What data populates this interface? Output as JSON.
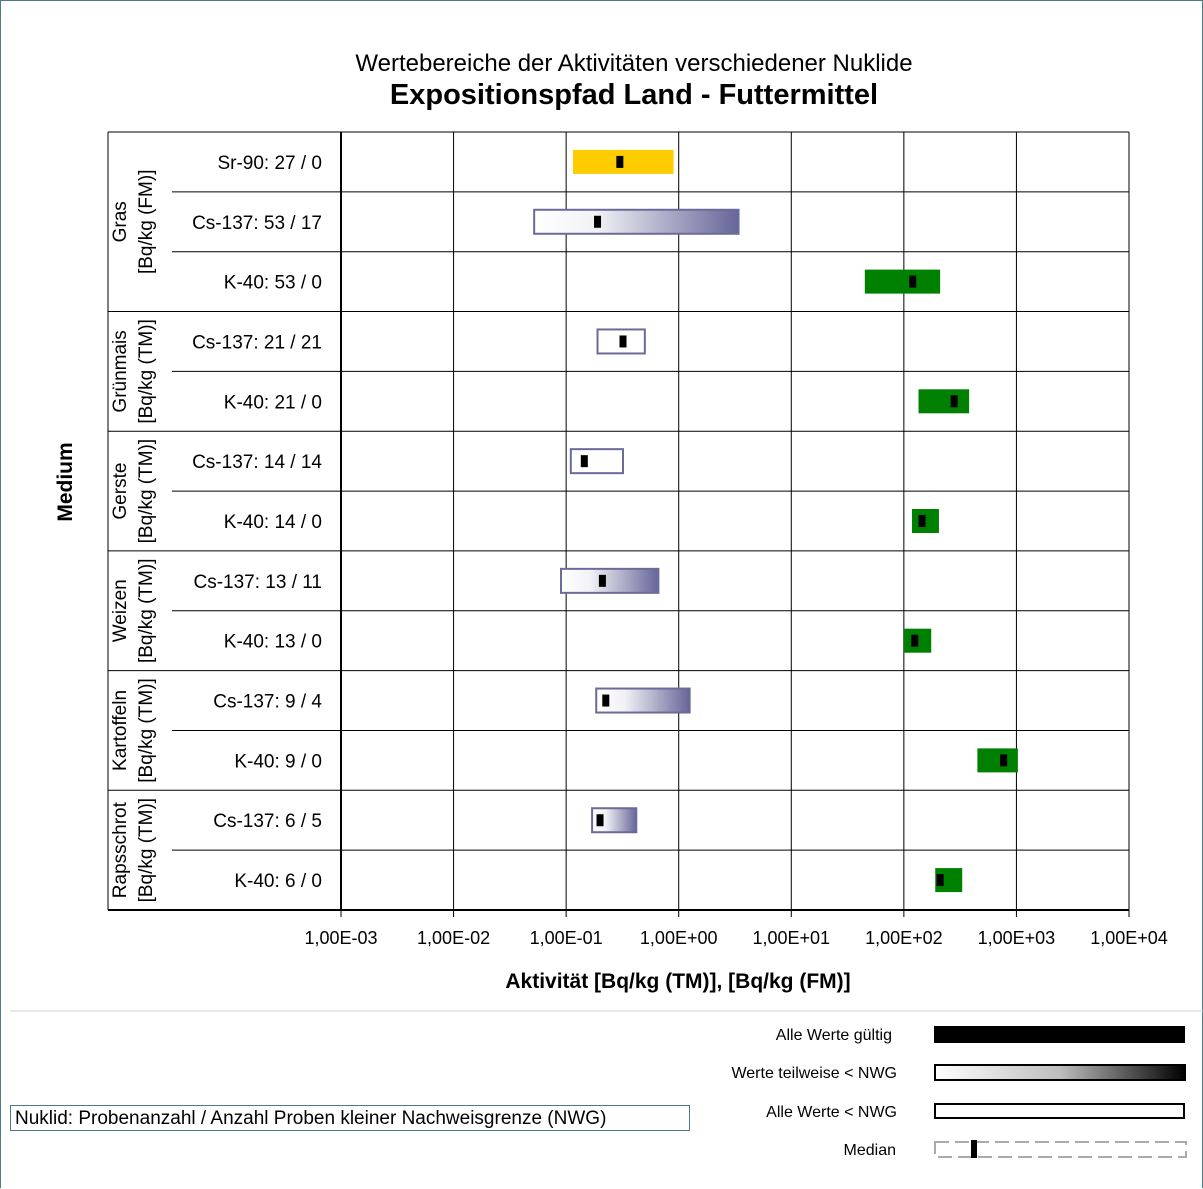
{
  "colors": {
    "sr90": "#ffcc00",
    "k40": "#008000",
    "cs_outline": "#6b6b9a",
    "cs_dark": "#666699",
    "median": "#000000",
    "frame": "#4b7b86"
  },
  "chart_data": {
    "type": "range-bar",
    "title": "Wertebereiche der Aktivitäten verschiedener Nuklide",
    "subtitle": "Expositionspfad Land - Futtermittel",
    "xlabel": "Aktivität [Bq/kg (TM)], [Bq/kg (FM)]",
    "ylabel": "Medium",
    "x_scale": "log",
    "xlim": [
      0.001,
      10000
    ],
    "x_ticks": [
      "1,00E-03",
      "1,00E-02",
      "1,00E-01",
      "1,00E+00",
      "1,00E+01",
      "1,00E+02",
      "1,00E+03",
      "1,00E+04"
    ],
    "grid": true,
    "groups": [
      {
        "name": "Gras",
        "unit": "[Bq/kg (FM)]",
        "rows": [
          {
            "label": "Sr-90: 27 / 0",
            "min": 0.115,
            "max": 0.9,
            "median": 0.3,
            "style": "sr90"
          },
          {
            "label": "Cs-137: 53 / 17",
            "min": 0.052,
            "max": 3.4,
            "median": 0.19,
            "style": "partial"
          },
          {
            "label": "K-40: 53 / 0",
            "min": 45,
            "max": 210,
            "median": 120,
            "style": "k40"
          }
        ]
      },
      {
        "name": "Grünmais",
        "unit": "[Bq/kg (TM)]",
        "rows": [
          {
            "label": "Cs-137: 21 / 21",
            "min": 0.19,
            "max": 0.5,
            "median": 0.32,
            "style": "all_below"
          },
          {
            "label": "K-40: 21 / 0",
            "min": 135,
            "max": 380,
            "median": 280,
            "style": "k40"
          }
        ]
      },
      {
        "name": "Gerste",
        "unit": "[Bq/kg (TM)]",
        "rows": [
          {
            "label": "Cs-137: 14 / 14",
            "min": 0.11,
            "max": 0.32,
            "median": 0.145,
            "style": "all_below"
          },
          {
            "label": "K-40: 14 / 0",
            "min": 118,
            "max": 205,
            "median": 145,
            "style": "k40"
          }
        ]
      },
      {
        "name": "Weizen",
        "unit": "[Bq/kg (TM)]",
        "rows": [
          {
            "label": "Cs-137: 13 / 11",
            "min": 0.09,
            "max": 0.66,
            "median": 0.21,
            "style": "partial"
          },
          {
            "label": "K-40: 13 / 0",
            "min": 100,
            "max": 175,
            "median": 125,
            "style": "k40"
          }
        ]
      },
      {
        "name": "Kartoffeln",
        "unit": "[Bq/kg (TM)]",
        "rows": [
          {
            "label": "Cs-137: 9 / 4",
            "min": 0.185,
            "max": 1.25,
            "median": 0.225,
            "style": "partial"
          },
          {
            "label": "K-40: 9 / 0",
            "min": 450,
            "max": 1030,
            "median": 770,
            "style": "k40"
          }
        ]
      },
      {
        "name": "Rapsschrot",
        "unit": "[Bq/kg (TM)]",
        "rows": [
          {
            "label": "Cs-137: 6 / 5",
            "min": 0.17,
            "max": 0.42,
            "median": 0.2,
            "style": "partial"
          },
          {
            "label": "K-40: 6 / 0",
            "min": 190,
            "max": 330,
            "median": 210,
            "style": "k40"
          }
        ]
      }
    ]
  },
  "legend": {
    "valid": "Alle Werte gültig",
    "partial": "Werte teilweise < NWG",
    "all_below": "Alle Werte < NWG",
    "median": "Median"
  },
  "note": "Nuklid: Probenanzahl / Anzahl Proben kleiner Nachweisgrenze (NWG)"
}
